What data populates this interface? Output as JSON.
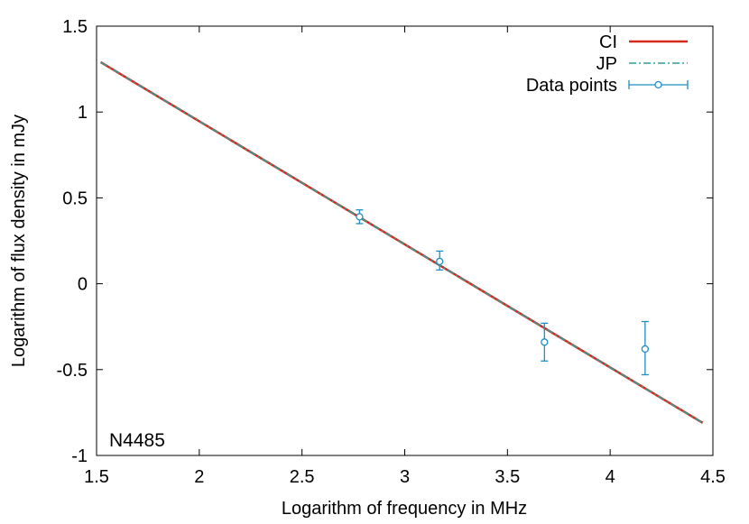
{
  "chart_data": {
    "type": "line",
    "title": "",
    "xlabel": "Logarithm of frequency in MHz",
    "ylabel": "Logarithm of flux density in mJy",
    "xlim": [
      1.5,
      4.5
    ],
    "ylim": [
      -1,
      1.5
    ],
    "xticks": [
      1.5,
      2,
      2.5,
      3,
      3.5,
      4,
      4.5
    ],
    "xtick_labels": [
      "1.5",
      "2",
      "2.5",
      "3",
      "3.5",
      "4",
      "4.5"
    ],
    "yticks": [
      -1,
      -0.5,
      0,
      0.5,
      1,
      1.5
    ],
    "ytick_labels": [
      "-1",
      "-0.5",
      "0",
      "0.5",
      "1",
      "1.5"
    ],
    "grid": false,
    "legend_position": "top-right",
    "annotation": "N4485",
    "series": [
      {
        "name": "CI",
        "kind": "line",
        "color": "#d62a1c",
        "style": "solid",
        "x": [
          1.52,
          4.45
        ],
        "y": [
          1.29,
          -0.81
        ]
      },
      {
        "name": "JP",
        "kind": "line",
        "color": "#2aa198",
        "style": "dash-dot",
        "x": [
          1.52,
          4.45
        ],
        "y": [
          1.29,
          -0.81
        ]
      },
      {
        "name": "Data points",
        "kind": "points",
        "color": "#1f8ec4",
        "x": [
          2.78,
          3.17,
          3.68,
          4.17
        ],
        "y": [
          0.39,
          0.13,
          -0.34,
          -0.38
        ],
        "yerr_low": [
          0.35,
          0.08,
          -0.45,
          -0.53
        ],
        "yerr_high": [
          0.43,
          0.19,
          -0.23,
          -0.22
        ]
      }
    ]
  }
}
